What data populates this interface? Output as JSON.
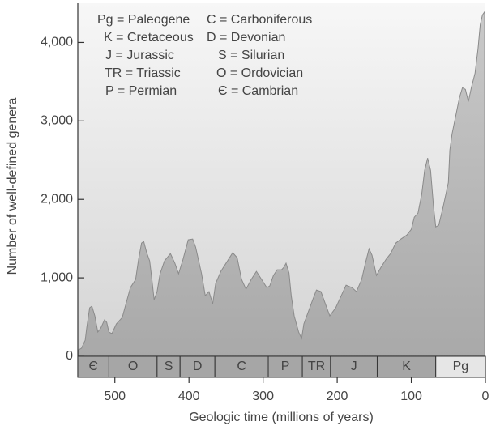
{
  "chart_data": {
    "type": "area",
    "x_label": "Geologic time (millions of years)",
    "y_label": "Number of well-defined genera",
    "xlim": [
      550,
      0
    ],
    "ylim": [
      0,
      4500
    ],
    "xticks": [
      500,
      400,
      300,
      200,
      100,
      0
    ],
    "yticks": [
      0,
      {
        "value": 1000,
        "label": "1,000"
      },
      {
        "value": 2000,
        "label": "2,000"
      },
      {
        "value": 3000,
        "label": "3,000"
      },
      {
        "value": 4000,
        "label": "4,000"
      }
    ],
    "legend": [
      "Pg = Paleogene",
      "K = Cretaceous",
      "J = Jurassic",
      "TR = Triassic",
      "P = Permian",
      "C = Carboniferous",
      "D = Devonian",
      "S = Silurian",
      "O = Ordovician",
      "Є = Cambrian"
    ],
    "periods": [
      {
        "label": "Є",
        "start": 550,
        "end": 508,
        "color": "#a6a6a6"
      },
      {
        "label": "O",
        "start": 508,
        "end": 443,
        "color": "#a6a6a6"
      },
      {
        "label": "S",
        "start": 443,
        "end": 412,
        "color": "#a6a6a6"
      },
      {
        "label": "D",
        "start": 412,
        "end": 365,
        "color": "#a6a6a6"
      },
      {
        "label": "C",
        "start": 365,
        "end": 293,
        "color": "#a6a6a6"
      },
      {
        "label": "P",
        "start": 293,
        "end": 247,
        "color": "#a6a6a6"
      },
      {
        "label": "TR",
        "start": 247,
        "end": 209,
        "color": "#a6a6a6"
      },
      {
        "label": "J",
        "start": 209,
        "end": 146,
        "color": "#a6a6a6"
      },
      {
        "label": "K",
        "start": 146,
        "end": 67,
        "color": "#a6a6a6"
      },
      {
        "label": "Pg",
        "start": 67,
        "end": 0,
        "color": "#e6e6e6"
      }
    ],
    "x": [
      549,
      545,
      540,
      538,
      534,
      531,
      527,
      523,
      519,
      514,
      511,
      508,
      504,
      498,
      490,
      485,
      479,
      472,
      468,
      464,
      461,
      457,
      453,
      450,
      447,
      443,
      439,
      433,
      425,
      419,
      414,
      408,
      401,
      395,
      391,
      383,
      378,
      373,
      368,
      364,
      357,
      348,
      341,
      335,
      329,
      323,
      316,
      309,
      302,
      295,
      291,
      286,
      281,
      275,
      272,
      269,
      265,
      262,
      258,
      252,
      248,
      245,
      239,
      233,
      228,
      222,
      216,
      210,
      202,
      195,
      188,
      180,
      174,
      167,
      162,
      157,
      153,
      147,
      141,
      134,
      128,
      121,
      114,
      106,
      100,
      96,
      91,
      86,
      82,
      78,
      74,
      70,
      67,
      63,
      57,
      50,
      48,
      45,
      39,
      35,
      31,
      27,
      23,
      19,
      14,
      10,
      7,
      4,
      1
    ],
    "series": [
      {
        "color": "#b5b5b5",
        "values": [
          82,
          103,
          206,
          360,
          619,
          639,
          515,
          309,
          360,
          464,
          433,
          309,
          289,
          412,
          495,
          670,
          876,
          979,
          1237,
          1443,
          1464,
          1320,
          1216,
          979,
          722,
          825,
          1052,
          1216,
          1309,
          1186,
          1052,
          1237,
          1485,
          1495,
          1392,
          1052,
          773,
          825,
          670,
          928,
          1082,
          1216,
          1320,
          1258,
          979,
          856,
          979,
          1082,
          979,
          876,
          897,
          1031,
          1103,
          1103,
          1134,
          1186,
          1062,
          773,
          515,
          309,
          227,
          412,
          567,
          722,
          845,
          825,
          670,
          515,
          619,
          763,
          907,
          876,
          825,
          979,
          1186,
          1371,
          1289,
          1031,
          1134,
          1237,
          1309,
          1443,
          1495,
          1546,
          1619,
          1773,
          1825,
          2062,
          2371,
          2526,
          2371,
          1907,
          1649,
          1670,
          1907,
          2216,
          2629,
          2835,
          3113,
          3299,
          3423,
          3402,
          3247,
          3423,
          3608,
          3918,
          4227,
          4351,
          4392
        ]
      }
    ]
  }
}
